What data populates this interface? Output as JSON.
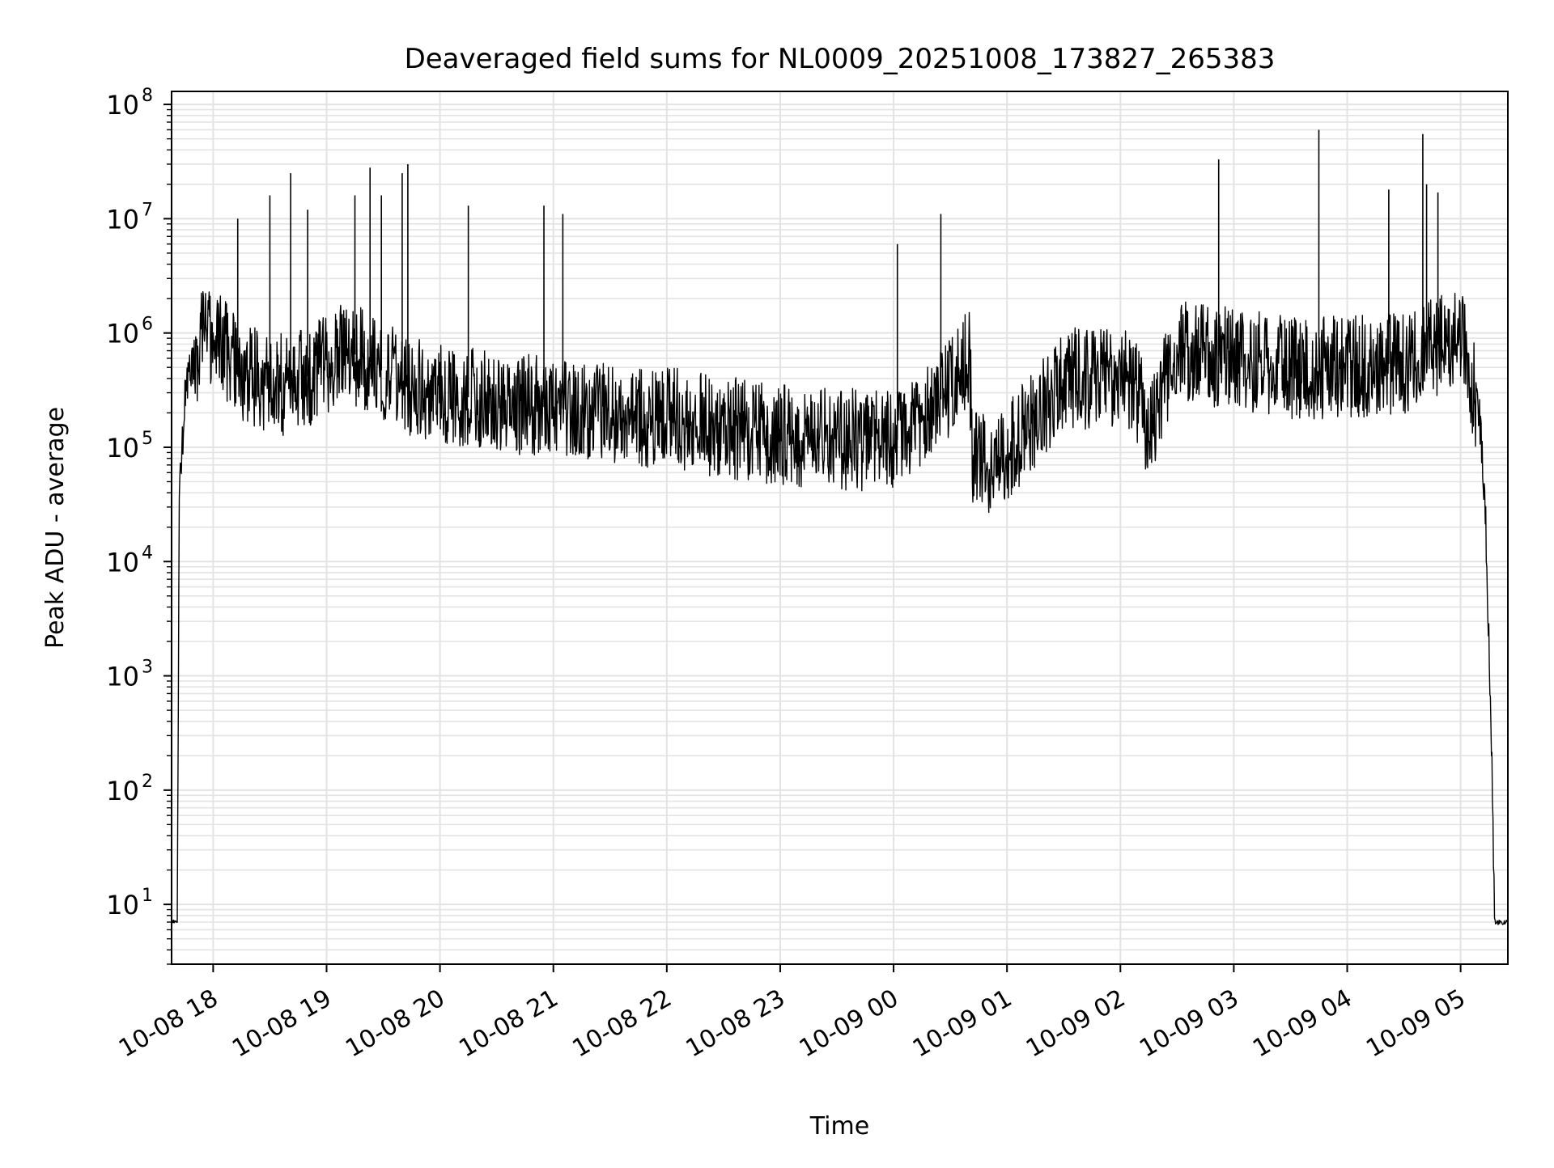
{
  "chart_data": {
    "type": "line",
    "title": "Deaveraged field sums for NL0009_20251008_173827_265383",
    "xlabel": "Time",
    "ylabel": "Peak ADU - average",
    "x_axis": "datetime",
    "x_range": [
      "2025-10-08 17:38",
      "2025-10-09 05:25"
    ],
    "y_scale": "log",
    "ylim": [
      3,
      130000000
    ],
    "grid": true,
    "x_ticks": [
      {
        "t": "2025-10-08 18:00",
        "label": "10-08 18"
      },
      {
        "t": "2025-10-08 19:00",
        "label": "10-08 19"
      },
      {
        "t": "2025-10-08 20:00",
        "label": "10-08 20"
      },
      {
        "t": "2025-10-08 21:00",
        "label": "10-08 21"
      },
      {
        "t": "2025-10-08 22:00",
        "label": "10-08 22"
      },
      {
        "t": "2025-10-08 23:00",
        "label": "10-08 23"
      },
      {
        "t": "2025-10-09 00:00",
        "label": "10-09 00"
      },
      {
        "t": "2025-10-09 01:00",
        "label": "10-09 01"
      },
      {
        "t": "2025-10-09 02:00",
        "label": "10-09 02"
      },
      {
        "t": "2025-10-09 03:00",
        "label": "10-09 03"
      },
      {
        "t": "2025-10-09 04:00",
        "label": "10-09 04"
      },
      {
        "t": "2025-10-09 05:00",
        "label": "10-09 05"
      }
    ],
    "y_ticks": [
      {
        "value": 10,
        "label": "10",
        "exp": "1"
      },
      {
        "value": 100,
        "label": "10",
        "exp": "2"
      },
      {
        "value": 1000,
        "label": "10",
        "exp": "3"
      },
      {
        "value": 10000,
        "label": "10",
        "exp": "4"
      },
      {
        "value": 100000,
        "label": "10",
        "exp": "5"
      },
      {
        "value": 1000000,
        "label": "10",
        "exp": "6"
      },
      {
        "value": 10000000,
        "label": "10",
        "exp": "7"
      },
      {
        "value": 100000000,
        "label": "10",
        "exp": "8"
      }
    ],
    "series": [
      {
        "color": "#000000",
        "points": [
          [
            "2025-10-08 17:38",
            7
          ],
          [
            "2025-10-08 17:41",
            7
          ],
          [
            "2025-10-08 17:42",
            30000
          ],
          [
            "2025-10-08 17:45",
            300000
          ],
          [
            "2025-10-08 17:50",
            600000
          ],
          [
            "2025-10-08 17:55",
            1000000
          ],
          [
            "2025-10-08 18:00",
            900000
          ],
          [
            "2025-10-08 18:20",
            400000
          ],
          [
            "2025-10-08 18:40",
            350000
          ],
          [
            "2025-10-08 19:00",
            500000
          ],
          [
            "2025-10-08 19:10",
            700000
          ],
          [
            "2025-10-08 19:20",
            600000
          ],
          [
            "2025-10-08 19:40",
            350000
          ],
          [
            "2025-10-08 20:00",
            300000
          ],
          [
            "2025-10-08 20:30",
            250000
          ],
          [
            "2025-10-08 21:00",
            220000
          ],
          [
            "2025-10-08 21:30",
            200000
          ],
          [
            "2025-10-08 22:00",
            180000
          ],
          [
            "2025-10-08 22:30",
            150000
          ],
          [
            "2025-10-08 23:00",
            130000
          ],
          [
            "2025-10-08 23:30",
            120000
          ],
          [
            "2025-10-09 00:00",
            110000
          ],
          [
            "2025-10-09 00:20",
            200000
          ],
          [
            "2025-10-09 00:40",
            600000
          ],
          [
            "2025-10-09 00:42",
            80000
          ],
          [
            "2025-10-09 00:55",
            70000
          ],
          [
            "2025-10-09 01:30",
            400000
          ],
          [
            "2025-10-09 02:05",
            400000
          ],
          [
            "2025-10-09 02:15",
            150000
          ],
          [
            "2025-10-09 02:30",
            700000
          ],
          [
            "2025-10-09 03:00",
            600000
          ],
          [
            "2025-10-09 03:30",
            500000
          ],
          [
            "2025-10-09 04:00",
            500000
          ],
          [
            "2025-10-09 04:30",
            550000
          ],
          [
            "2025-10-09 05:00",
            1000000
          ],
          [
            "2025-10-09 05:10",
            200000
          ],
          [
            "2025-10-09 05:13",
            30000
          ],
          [
            "2025-10-09 05:16",
            500
          ],
          [
            "2025-10-09 05:18",
            7
          ],
          [
            "2025-10-09 05:25",
            7
          ]
        ]
      }
    ],
    "spikes": [
      [
        "2025-10-08 18:13",
        10000000
      ],
      [
        "2025-10-08 18:30",
        16000000
      ],
      [
        "2025-10-08 18:41",
        25000000
      ],
      [
        "2025-10-08 18:50",
        12000000
      ],
      [
        "2025-10-08 19:15",
        16000000
      ],
      [
        "2025-10-08 19:23",
        28000000
      ],
      [
        "2025-10-08 19:29",
        16000000
      ],
      [
        "2025-10-08 19:40",
        25000000
      ],
      [
        "2025-10-08 19:43",
        30000000
      ],
      [
        "2025-10-08 20:15",
        13000000
      ],
      [
        "2025-10-08 20:55",
        13000000
      ],
      [
        "2025-10-08 21:05",
        11000000
      ],
      [
        "2025-10-09 00:02",
        6000000
      ],
      [
        "2025-10-09 00:25",
        11000000
      ],
      [
        "2025-10-09 02:52",
        33000000
      ],
      [
        "2025-10-09 03:45",
        60000000
      ],
      [
        "2025-10-09 04:22",
        18000000
      ],
      [
        "2025-10-09 04:40",
        55000000
      ],
      [
        "2025-10-09 04:42",
        20000000
      ],
      [
        "2025-10-09 04:48",
        17000000
      ]
    ]
  }
}
